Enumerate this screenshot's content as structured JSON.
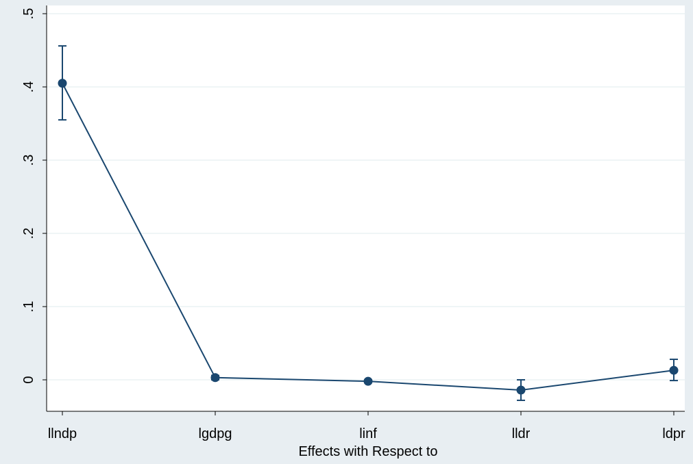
{
  "chart_data": {
    "type": "line",
    "title": "",
    "xlabel": "Effects with Respect to",
    "ylabel": "",
    "categories": [
      "llndp",
      "lgdpg",
      "linf",
      "lldr",
      "ldpr"
    ],
    "series": [
      {
        "values": [
          0.405,
          0.003,
          -0.002,
          -0.014,
          0.013
        ],
        "ci_lower": [
          0.355,
          0.0,
          -0.004,
          -0.028,
          -0.001
        ],
        "ci_upper": [
          0.456,
          0.006,
          0.0,
          -0.0,
          0.028
        ]
      }
    ],
    "ylim": [
      -0.044,
      0.512
    ],
    "yticks": [
      0,
      0.1,
      0.2,
      0.3,
      0.4,
      0.5
    ],
    "ytick_labels": [
      "0",
      ".1",
      ".2",
      ".3",
      ".4",
      ".5"
    ],
    "grid": true,
    "colors": {
      "line": "#1a476f",
      "grid": "#eaf2f3",
      "plot_bg": "#ffffff",
      "outer_bg": "#e8eef2"
    }
  }
}
